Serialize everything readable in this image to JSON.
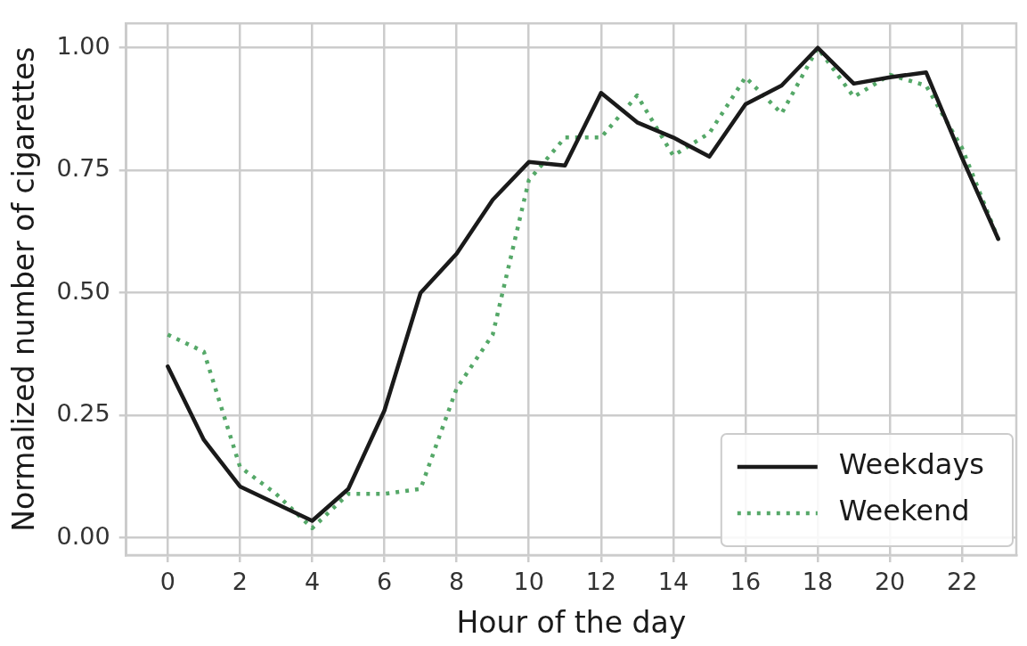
{
  "chart_data": {
    "type": "line",
    "xlabel": "Hour of the day",
    "ylabel": "Normalized number of cigarettes",
    "x": [
      0,
      1,
      2,
      3,
      4,
      5,
      6,
      7,
      8,
      9,
      10,
      11,
      12,
      13,
      14,
      15,
      16,
      17,
      18,
      19,
      20,
      21,
      22,
      23
    ],
    "series": [
      {
        "name": "Weekdays",
        "color": "#1a1a1a",
        "line_style": "solid",
        "values": [
          0.35,
          0.2,
          0.105,
          0.07,
          0.035,
          0.1,
          0.26,
          0.5,
          0.58,
          0.69,
          0.767,
          0.76,
          0.908,
          0.848,
          0.817,
          0.778,
          0.885,
          0.923,
          1.0,
          0.927,
          0.94,
          0.95,
          0.775,
          0.61
        ]
      },
      {
        "name": "Weekend",
        "color": "#55a868",
        "line_style": "dotted",
        "values": [
          0.415,
          0.38,
          0.145,
          0.09,
          0.02,
          0.09,
          0.09,
          0.1,
          0.305,
          0.415,
          0.73,
          0.817,
          0.817,
          0.903,
          0.78,
          0.826,
          0.94,
          0.866,
          1.0,
          0.9,
          0.945,
          0.923,
          0.795,
          0.61
        ]
      }
    ],
    "xlim": [
      -1.15,
      23.5
    ],
    "ylim": [
      -0.035,
      1.05
    ],
    "xticks": [
      0,
      2,
      4,
      6,
      8,
      10,
      12,
      14,
      16,
      18,
      20,
      22
    ],
    "yticks": [
      {
        "value": 0,
        "label": "0.00"
      },
      {
        "value": 0.25,
        "label": "0.25"
      },
      {
        "value": 0.5,
        "label": "0.50"
      },
      {
        "value": 0.75,
        "label": "0.75"
      },
      {
        "value": 1,
        "label": "1.00"
      }
    ],
    "grid": true,
    "legend": "bottom right",
    "marker": "none"
  }
}
